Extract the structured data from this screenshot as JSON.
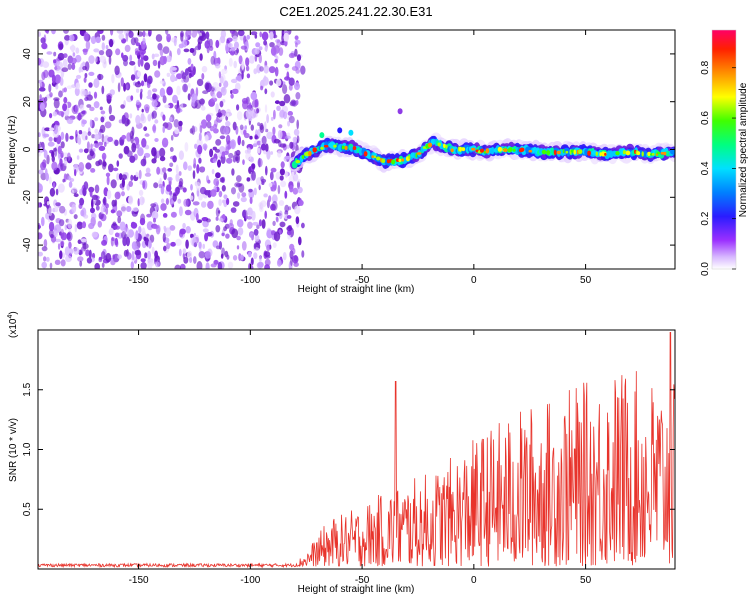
{
  "title": "C2E1.2025.241.22.30.E31",
  "chart_data": [
    {
      "type": "heatmap",
      "name": "spectrogram",
      "title": "C2E1.2025.241.22.30.E31",
      "xlabel": "Height of straight line (km)",
      "ylabel": "Frequency (Hz)",
      "xlim": [
        -195,
        90
      ],
      "ylim": [
        -50,
        50
      ],
      "xticks": [
        -150,
        -100,
        -50,
        0,
        50
      ],
      "xtick_labels": [
        "-150",
        "-100",
        "-50",
        "0",
        "50"
      ],
      "yticks": [
        -40,
        -20,
        0,
        20,
        40
      ],
      "ytick_labels": [
        "-40",
        "-20",
        "0",
        "20",
        "40"
      ],
      "noise_region_x": [
        -195,
        -80
      ],
      "signal_region_x": [
        -80,
        90
      ],
      "line_trace": {
        "x": [
          -80,
          -75,
          -70,
          -65,
          -60,
          -55,
          -50,
          -45,
          -40,
          -35,
          -30,
          -25,
          -20,
          -18,
          -15,
          -10,
          -5,
          0,
          5,
          10,
          20,
          30,
          40,
          50,
          60,
          70,
          80,
          90
        ],
        "freq": [
          -6,
          -2,
          0,
          2,
          1,
          1,
          -1,
          -3,
          -5,
          -5,
          -4,
          -2,
          2,
          3,
          2,
          0,
          0,
          0,
          -1,
          0,
          0,
          -1,
          -1,
          -1,
          -2,
          -1,
          -2,
          -1
        ]
      },
      "colorbar": {
        "label": "Normalized spectral amplitude",
        "range": [
          0,
          0.95
        ],
        "ticks": [
          0.0,
          0.2,
          0.4,
          0.6,
          0.8
        ],
        "tick_labels": [
          "0.0",
          "0.2",
          "0.4",
          "0.6",
          "0.8"
        ]
      }
    },
    {
      "type": "line",
      "name": "snr",
      "xlabel": "Height of straight line (km)",
      "ylabel": "SNR (10 * v/v)",
      "y_multiplier": "(x10",
      "y_multiplier_exp": "4",
      "y_multiplier_close": ")",
      "xlim": [
        -195,
        90
      ],
      "ylim": [
        0,
        2.0
      ],
      "xticks": [
        -150,
        -100,
        -50,
        0,
        50
      ],
      "xtick_labels": [
        "-150",
        "-100",
        "-50",
        "0",
        "50"
      ],
      "yticks": [
        0.5,
        1.0,
        1.5
      ],
      "ytick_labels": [
        "0.5",
        "1.0",
        "1.5"
      ],
      "series_color": "#e8332b",
      "envelope_x": [
        -195,
        -80,
        -75,
        -65,
        -55,
        -45,
        -35,
        -25,
        -15,
        -5,
        5,
        15,
        25,
        35,
        45,
        55,
        65,
        75,
        90
      ],
      "envelope_y": [
        0.03,
        0.03,
        0.12,
        0.38,
        0.45,
        0.55,
        0.65,
        0.72,
        0.8,
        0.95,
        1.1,
        1.2,
        1.3,
        1.35,
        1.45,
        1.5,
        1.6,
        1.55,
        1.45
      ],
      "peaks": [
        {
          "x": -35,
          "y": 1.57
        },
        {
          "x": 88,
          "y": 1.98
        }
      ]
    }
  ],
  "colors": {
    "noise_purple": "#7b2fd6",
    "line_red": "#e8332b"
  }
}
